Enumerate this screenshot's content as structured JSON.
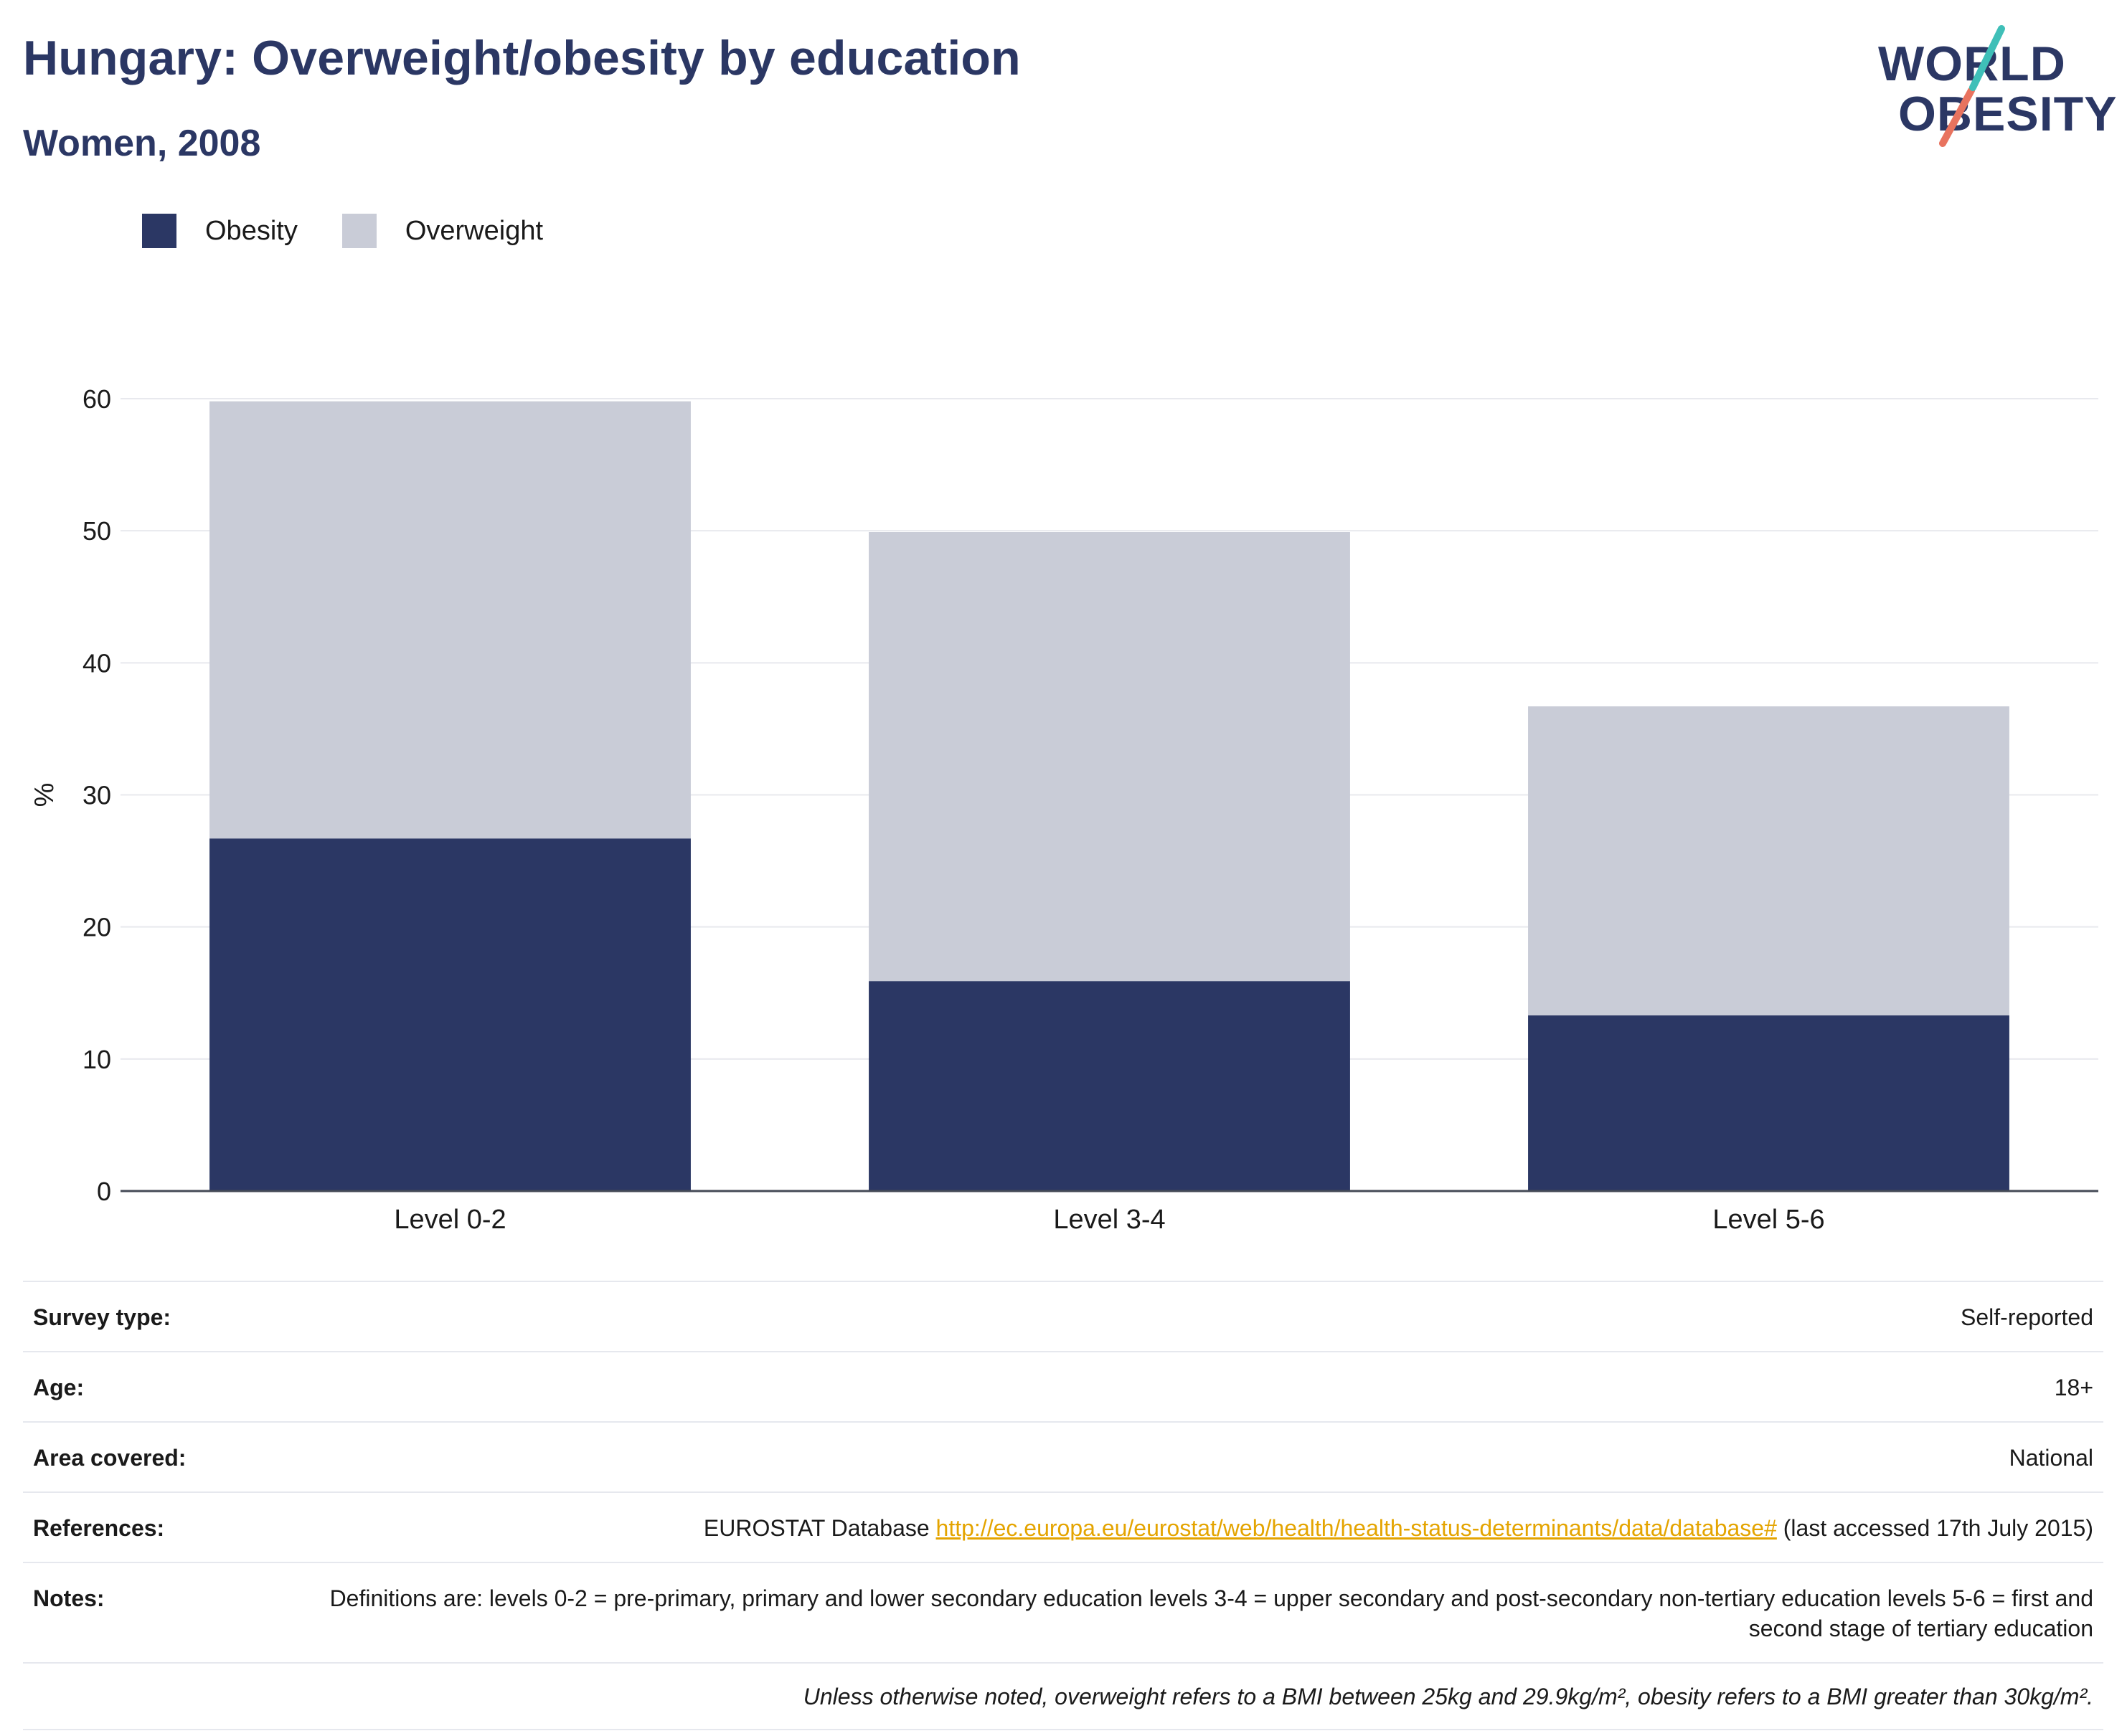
{
  "header": {
    "title": "Hungary: Overweight/obesity by education",
    "subtitle": "Women, 2008"
  },
  "logo": {
    "line1": "WORLD",
    "line2": "OBESITY"
  },
  "colors": {
    "obesity": "#2b3764",
    "overweight": "#c9ccd7",
    "brand_teal": "#3fbfb8",
    "brand_coral": "#e8735f",
    "link": "#e4a400"
  },
  "chart_data": {
    "type": "bar",
    "stacked": true,
    "categories": [
      "Level 0-2",
      "Level 3-4",
      "Level 5-6"
    ],
    "series": [
      {
        "name": "Obesity",
        "values": [
          26.7,
          15.9,
          13.3
        ]
      },
      {
        "name": "Overweight",
        "values": [
          33.1,
          34.0,
          23.4
        ]
      }
    ],
    "ylabel": "%",
    "ylim": [
      0,
      60
    ],
    "yticks": [
      0,
      10,
      20,
      30,
      40,
      50,
      60
    ],
    "grid": true,
    "legend_position": "top-left"
  },
  "info": {
    "rows": [
      {
        "key": "Survey type:",
        "value": "Self-reported"
      },
      {
        "key": "Age:",
        "value": "18+"
      },
      {
        "key": "Area covered:",
        "value": "National"
      }
    ],
    "references": {
      "key": "References:",
      "prefix": "EUROSTAT Database ",
      "link": "http://ec.europa.eu/eurostat/web/health/health-status-determinants/data/database#",
      "suffix": " (last accessed 17th July 2015)"
    },
    "notes": {
      "key": "Notes:",
      "value": "Definitions are: levels 0-2 = pre-primary, primary and lower secondary education levels 3-4 = upper secondary and post-secondary non-tertiary education levels 5-6 = first and second stage of tertiary education"
    },
    "footnote": "Unless otherwise noted, overweight refers to a BMI between 25kg and 29.9kg/m², obesity refers to a BMI greater than 30kg/m²."
  }
}
